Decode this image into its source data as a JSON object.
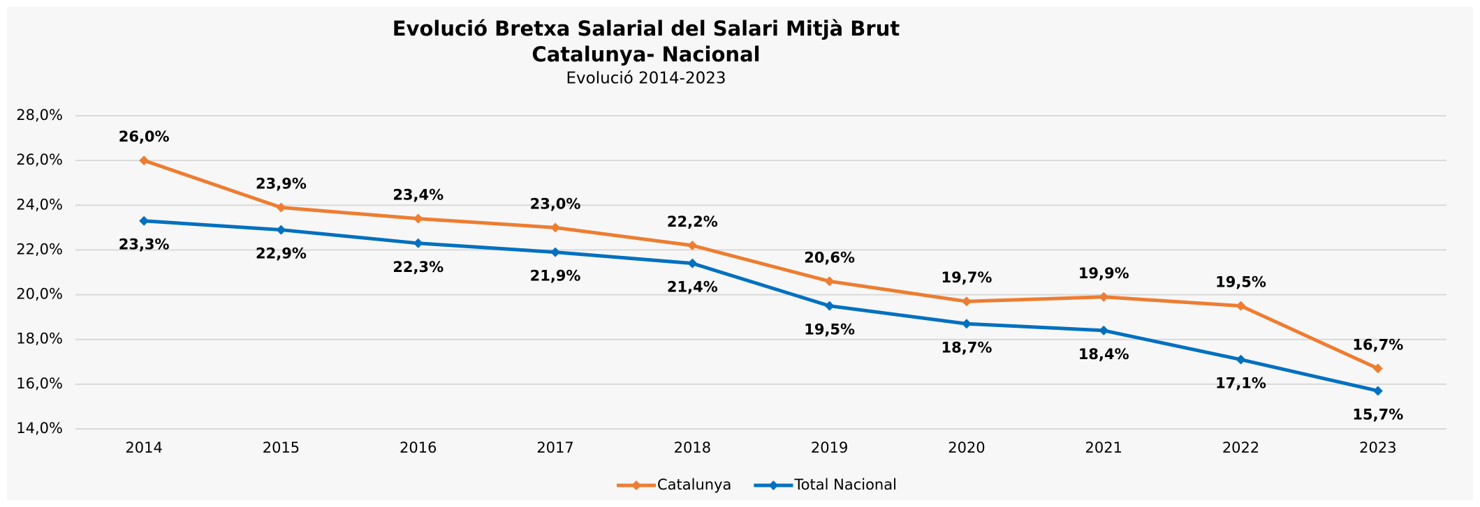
{
  "chart_data": {
    "type": "line",
    "title": "Evolució Bretxa Salarial del Salari Mitjà Brut",
    "subtitle_line": "Catalunya- Nacional",
    "subtitle": "Evolució 2014-2023",
    "categories": [
      "2014",
      "2015",
      "2016",
      "2017",
      "2018",
      "2019",
      "2020",
      "2021",
      "2022",
      "2023"
    ],
    "series": [
      {
        "name": "Catalunya",
        "color": "#ed7d31",
        "label_position": "above",
        "values": [
          26.0,
          23.9,
          23.4,
          23.0,
          22.2,
          20.6,
          19.7,
          19.9,
          19.5,
          16.7
        ],
        "value_labels": [
          "26,0%",
          "23,9%",
          "23,4%",
          "23,0%",
          "22,2%",
          "20,6%",
          "19,7%",
          "19,9%",
          "19,5%",
          "16,7%"
        ]
      },
      {
        "name": "Total Nacional",
        "color": "#0070c0",
        "label_position": "below",
        "values": [
          23.3,
          22.9,
          22.3,
          21.9,
          21.4,
          19.5,
          18.7,
          18.4,
          17.1,
          15.7
        ],
        "value_labels": [
          "23,3%",
          "22,9%",
          "22,3%",
          "21,9%",
          "21,4%",
          "19,5%",
          "18,7%",
          "18,4%",
          "17,1%",
          "15,7%"
        ]
      }
    ],
    "ylim": [
      14,
      28
    ],
    "yticks": [
      {
        "value": 14,
        "label": "14,0%"
      },
      {
        "value": 16,
        "label": "16,0%"
      },
      {
        "value": 18,
        "label": "18,0%"
      },
      {
        "value": 20,
        "label": "20,0%"
      },
      {
        "value": 22,
        "label": "22,0%"
      },
      {
        "value": 24,
        "label": "24,0%"
      },
      {
        "value": 26,
        "label": "26,0%"
      },
      {
        "value": 28,
        "label": "28,0%"
      }
    ],
    "grid": true,
    "legend": "bottom"
  }
}
